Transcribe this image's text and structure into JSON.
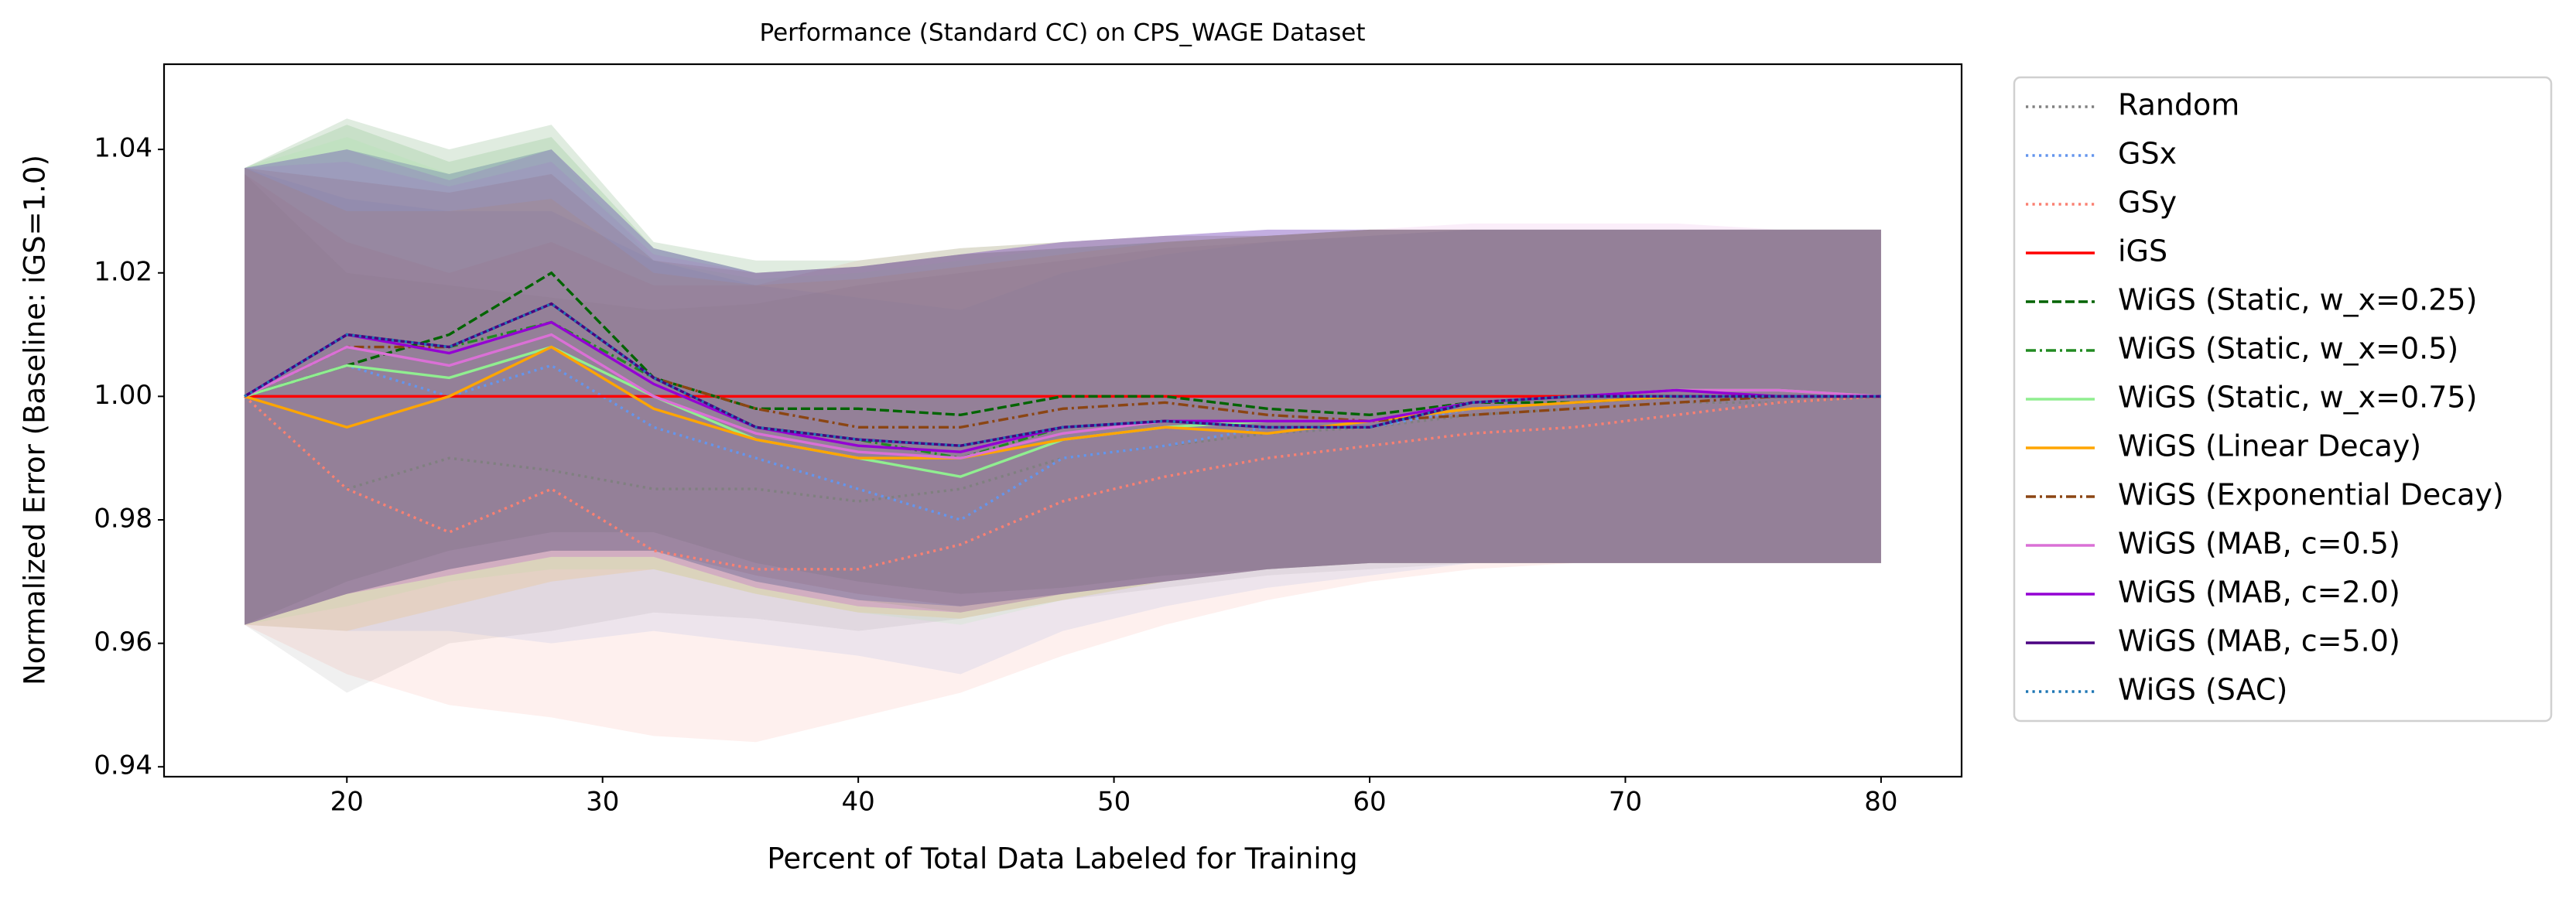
{
  "chart_data": {
    "type": "line",
    "title": "Performance (Standard CC) on CPS_WAGE Dataset",
    "xlabel": "Percent of Total Data Labeled for Training",
    "ylabel": "Normalized Error (Baseline: iGS=1.0)",
    "xlim": [
      12.85,
      83.15
    ],
    "ylim": [
      0.9384,
      1.0538
    ],
    "xticks": [
      20,
      30,
      40,
      50,
      60,
      70,
      80
    ],
    "yticks": [
      0.94,
      0.96,
      0.98,
      {
        "value": 1,
        "label": "1.00"
      },
      1.02,
      1.04
    ],
    "legend": "outside-right",
    "x": [
      16,
      20,
      24,
      28,
      32,
      36,
      40,
      44,
      48,
      52,
      56,
      60,
      64,
      68,
      72,
      76,
      80
    ],
    "series": [
      {
        "name": "Random",
        "color": "#808080",
        "style": "dotted",
        "values": [
          1.0,
          0.985,
          0.99,
          0.988,
          0.985,
          0.985,
          0.983,
          0.985,
          0.99,
          0.992,
          0.994,
          0.995,
          0.997,
          0.998,
          0.999,
          0.999,
          1.0
        ],
        "upper": [
          1.036,
          1.02,
          1.018,
          1.016,
          1.014,
          1.015,
          1.018,
          1.02,
          1.022,
          1.024,
          1.025,
          1.026,
          1.027,
          1.027,
          1.027,
          1.027,
          1.027
        ],
        "lower": [
          0.963,
          0.952,
          0.96,
          0.962,
          0.965,
          0.964,
          0.962,
          0.964,
          0.967,
          0.969,
          0.971,
          0.972,
          0.973,
          0.973,
          0.973,
          0.973,
          0.973
        ]
      },
      {
        "name": "GSx",
        "color": "#6495ed",
        "style": "dotted",
        "values": [
          1.0,
          1.005,
          1.0,
          1.005,
          0.995,
          0.99,
          0.985,
          0.98,
          0.99,
          0.992,
          0.995,
          0.995,
          0.998,
          0.999,
          1.0,
          1.0,
          1.0
        ],
        "upper": [
          1.037,
          1.032,
          1.03,
          1.03,
          1.022,
          1.018,
          1.016,
          1.014,
          1.02,
          1.023,
          1.025,
          1.026,
          1.027,
          1.027,
          1.027,
          1.027,
          1.027
        ],
        "lower": [
          0.963,
          0.962,
          0.962,
          0.96,
          0.962,
          0.96,
          0.958,
          0.955,
          0.962,
          0.966,
          0.969,
          0.971,
          0.973,
          0.973,
          0.973,
          0.973,
          0.973
        ]
      },
      {
        "name": "GSy",
        "color": "#fa8072",
        "style": "dotted",
        "values": [
          1.0,
          0.985,
          0.978,
          0.985,
          0.975,
          0.972,
          0.972,
          0.976,
          0.983,
          0.987,
          0.99,
          0.992,
          0.994,
          0.995,
          0.997,
          0.999,
          1.0
        ],
        "upper": [
          1.036,
          1.025,
          1.02,
          1.025,
          1.018,
          1.018,
          1.022,
          1.024,
          1.025,
          1.026,
          1.026,
          1.027,
          1.027,
          1.027,
          1.027,
          1.027,
          1.027
        ],
        "lower": [
          0.963,
          0.955,
          0.95,
          0.948,
          0.945,
          0.944,
          0.948,
          0.952,
          0.958,
          0.963,
          0.967,
          0.97,
          0.972,
          0.973,
          0.973,
          0.973,
          0.973
        ]
      },
      {
        "name": "iGS",
        "color": "#ff0000",
        "style": "solid",
        "values": [
          1.0,
          1.0,
          1.0,
          1.0,
          1.0,
          1.0,
          1.0,
          1.0,
          1.0,
          1.0,
          1.0,
          1.0,
          1.0,
          1.0,
          1.0,
          1.0,
          1.0
        ],
        "upper": [
          1.0,
          1.0,
          1.0,
          1.0,
          1.0,
          1.0,
          1.0,
          1.0,
          1.0,
          1.0,
          1.0,
          1.0,
          1.0,
          1.0,
          1.0,
          1.0,
          1.0
        ],
        "lower": [
          1.0,
          1.0,
          1.0,
          1.0,
          1.0,
          1.0,
          1.0,
          1.0,
          1.0,
          1.0,
          1.0,
          1.0,
          1.0,
          1.0,
          1.0,
          1.0,
          1.0
        ]
      },
      {
        "name": "WiGS (Static, w_x=0.25)",
        "color": "#006400",
        "style": "dashed",
        "values": [
          1.0,
          1.005,
          1.01,
          1.02,
          1.003,
          0.998,
          0.998,
          0.997,
          1.0,
          1.0,
          0.998,
          0.997,
          0.999,
          0.999,
          1.0,
          1.0,
          1.0
        ],
        "upper": [
          1.037,
          1.045,
          1.04,
          1.044,
          1.025,
          1.022,
          1.022,
          1.024,
          1.025,
          1.026,
          1.026,
          1.027,
          1.027,
          1.027,
          1.027,
          1.027,
          1.027
        ],
        "lower": [
          0.963,
          0.97,
          0.975,
          0.978,
          0.978,
          0.973,
          0.97,
          0.968,
          0.969,
          0.971,
          0.972,
          0.973,
          0.973,
          0.973,
          0.973,
          0.973,
          0.973
        ]
      },
      {
        "name": "WiGS (Static, w_x=0.5)",
        "color": "#228b22",
        "style": "dashdot",
        "values": [
          1.0,
          1.01,
          1.008,
          1.012,
          1.003,
          0.995,
          0.993,
          0.99,
          0.995,
          0.996,
          0.996,
          0.996,
          0.999,
          1.0,
          1.0,
          1.0,
          1.0
        ],
        "upper": [
          1.037,
          1.044,
          1.038,
          1.042,
          1.024,
          1.02,
          1.021,
          1.023,
          1.024,
          1.025,
          1.026,
          1.027,
          1.027,
          1.027,
          1.027,
          1.027,
          1.027
        ],
        "lower": [
          0.963,
          0.968,
          0.972,
          0.975,
          0.975,
          0.97,
          0.967,
          0.965,
          0.968,
          0.97,
          0.972,
          0.973,
          0.973,
          0.973,
          0.973,
          0.973,
          0.973
        ]
      },
      {
        "name": "WiGS (Static, w_x=0.75)",
        "color": "#90ee90",
        "style": "solid",
        "values": [
          1.0,
          1.005,
          1.003,
          1.008,
          1.0,
          0.993,
          0.99,
          0.987,
          0.993,
          0.995,
          0.996,
          0.996,
          0.999,
          1.0,
          1.001,
          1.001,
          1.0
        ],
        "upper": [
          1.037,
          1.042,
          1.036,
          1.04,
          1.022,
          1.019,
          1.02,
          1.022,
          1.024,
          1.025,
          1.026,
          1.027,
          1.027,
          1.027,
          1.027,
          1.027,
          1.027
        ],
        "lower": [
          0.963,
          0.966,
          0.97,
          0.972,
          0.972,
          0.968,
          0.965,
          0.963,
          0.967,
          0.97,
          0.972,
          0.973,
          0.973,
          0.973,
          0.973,
          0.973,
          0.973
        ]
      },
      {
        "name": "WiGS (Linear Decay)",
        "color": "#ffa500",
        "style": "solid",
        "values": [
          1.0,
          0.995,
          1.0,
          1.008,
          0.998,
          0.993,
          0.99,
          0.99,
          0.993,
          0.995,
          0.994,
          0.996,
          0.998,
          0.999,
          1.0,
          1.0,
          1.0
        ],
        "upper": [
          1.037,
          1.03,
          1.03,
          1.032,
          1.02,
          1.018,
          1.019,
          1.021,
          1.023,
          1.025,
          1.026,
          1.027,
          1.027,
          1.027,
          1.027,
          1.027,
          1.027
        ],
        "lower": [
          0.963,
          0.962,
          0.966,
          0.97,
          0.972,
          0.968,
          0.965,
          0.964,
          0.967,
          0.97,
          0.972,
          0.973,
          0.973,
          0.973,
          0.973,
          0.973,
          0.973
        ]
      },
      {
        "name": "WiGS (Exponential Decay)",
        "color": "#8b4513",
        "style": "dashdot",
        "values": [
          1.0,
          1.008,
          1.008,
          1.015,
          1.003,
          0.998,
          0.995,
          0.995,
          0.998,
          0.999,
          0.997,
          0.996,
          0.997,
          0.998,
          0.999,
          1.0,
          1.0
        ],
        "upper": [
          1.037,
          1.035,
          1.033,
          1.036,
          1.022,
          1.02,
          1.021,
          1.023,
          1.024,
          1.025,
          1.026,
          1.027,
          1.027,
          1.027,
          1.027,
          1.027,
          1.027
        ],
        "lower": [
          0.963,
          0.968,
          0.972,
          0.975,
          0.975,
          0.971,
          0.968,
          0.966,
          0.968,
          0.97,
          0.972,
          0.973,
          0.973,
          0.973,
          0.973,
          0.973,
          0.973
        ]
      },
      {
        "name": "WiGS (MAB, c=0.5)",
        "color": "#da70d6",
        "style": "solid",
        "values": [
          1.0,
          1.008,
          1.005,
          1.01,
          1.0,
          0.994,
          0.991,
          0.99,
          0.994,
          0.996,
          0.996,
          0.996,
          0.999,
          1.0,
          1.001,
          1.001,
          1.0
        ],
        "upper": [
          1.037,
          1.038,
          1.034,
          1.038,
          1.023,
          1.02,
          1.021,
          1.023,
          1.025,
          1.026,
          1.027,
          1.027,
          1.028,
          1.028,
          1.028,
          1.027,
          1.027
        ],
        "lower": [
          0.963,
          0.968,
          0.971,
          0.974,
          0.974,
          0.969,
          0.966,
          0.965,
          0.968,
          0.97,
          0.972,
          0.973,
          0.973,
          0.973,
          0.973,
          0.973,
          0.973
        ]
      },
      {
        "name": "WiGS (MAB, c=2.0)",
        "color": "#9400d3",
        "style": "solid",
        "values": [
          1.0,
          1.01,
          1.007,
          1.012,
          1.002,
          0.995,
          0.992,
          0.991,
          0.995,
          0.996,
          0.996,
          0.996,
          0.999,
          1.0,
          1.001,
          1.0,
          1.0
        ],
        "upper": [
          1.037,
          1.04,
          1.035,
          1.04,
          1.024,
          1.02,
          1.021,
          1.023,
          1.025,
          1.026,
          1.027,
          1.027,
          1.027,
          1.027,
          1.027,
          1.027,
          1.027
        ],
        "lower": [
          0.963,
          0.968,
          0.971,
          0.974,
          0.974,
          0.969,
          0.966,
          0.965,
          0.968,
          0.97,
          0.972,
          0.973,
          0.973,
          0.973,
          0.973,
          0.973,
          0.973
        ]
      },
      {
        "name": "WiGS (MAB, c=5.0)",
        "color": "#4b0082",
        "style": "solid",
        "values": [
          1.0,
          1.01,
          1.008,
          1.015,
          1.003,
          0.995,
          0.993,
          0.992,
          0.995,
          0.996,
          0.995,
          0.995,
          0.999,
          1.0,
          1.0,
          1.0,
          1.0
        ],
        "upper": [
          1.037,
          1.04,
          1.036,
          1.04,
          1.024,
          1.02,
          1.021,
          1.023,
          1.025,
          1.026,
          1.027,
          1.027,
          1.027,
          1.027,
          1.027,
          1.027,
          1.027
        ],
        "lower": [
          0.963,
          0.968,
          0.972,
          0.975,
          0.975,
          0.97,
          0.967,
          0.966,
          0.968,
          0.97,
          0.972,
          0.973,
          0.973,
          0.973,
          0.973,
          0.973,
          0.973
        ]
      },
      {
        "name": "WiGS (SAC)",
        "color": "#1f77b4",
        "style": "dotted",
        "values": [
          1.0,
          1.01,
          1.008,
          1.015,
          1.003,
          0.995,
          0.993,
          0.992,
          0.995,
          0.996,
          0.995,
          0.995,
          0.999,
          1.0,
          1.0,
          1.0,
          1.0
        ],
        "upper": [
          1.037,
          1.04,
          1.036,
          1.04,
          1.024,
          1.02,
          1.021,
          1.023,
          1.025,
          1.026,
          1.027,
          1.027,
          1.027,
          1.027,
          1.027,
          1.027,
          1.027
        ],
        "lower": [
          0.963,
          0.968,
          0.972,
          0.975,
          0.975,
          0.97,
          0.967,
          0.966,
          0.968,
          0.97,
          0.972,
          0.973,
          0.973,
          0.973,
          0.973,
          0.973,
          0.973
        ]
      }
    ]
  }
}
